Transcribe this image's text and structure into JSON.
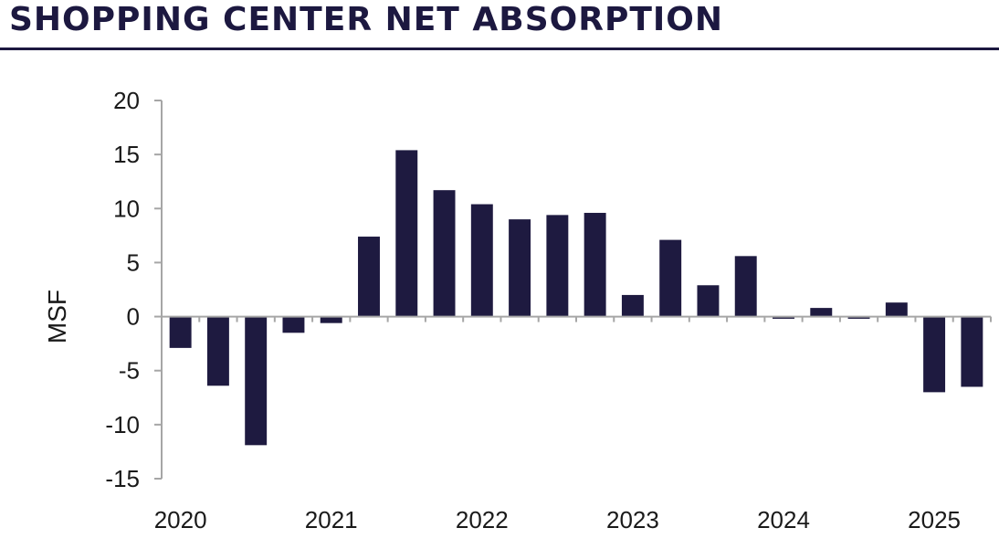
{
  "title": "SHOPPING CENTER NET ABSORPTION",
  "chart_data": {
    "type": "bar",
    "title": "SHOPPING CENTER NET ABSORPTION",
    "ylabel": "MSF",
    "xlabel": "",
    "ylim": [
      -15,
      20
    ],
    "yticks": [
      20,
      15,
      10,
      5,
      0,
      -5,
      -10,
      -15
    ],
    "x_tick_labels": [
      "2020",
      "2021",
      "2022",
      "2023",
      "2024",
      "2025"
    ],
    "bar_color": "#1e1a40",
    "grid": false,
    "values": [
      -2.9,
      -6.4,
      -11.9,
      -1.5,
      -0.6,
      7.4,
      15.4,
      11.7,
      10.4,
      9.0,
      9.4,
      9.6,
      2.0,
      7.1,
      2.9,
      5.6,
      -0.2,
      0.8,
      -0.2,
      1.3,
      -7.0,
      -6.5
    ]
  }
}
